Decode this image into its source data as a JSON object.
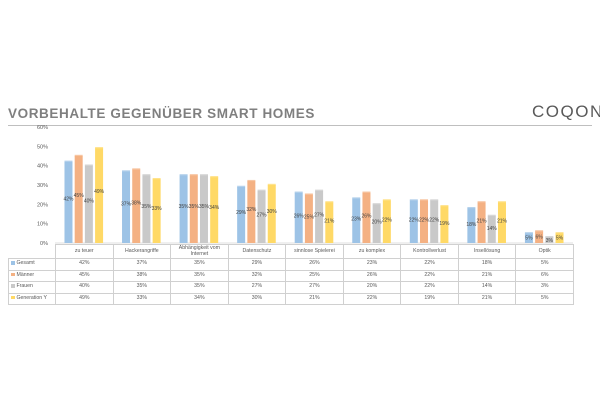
{
  "title": "VORBEHALTE GEGENÜBER SMART HOMES",
  "logo": "COQON",
  "colors": {
    "Gesamt": "#9dc3e6",
    "Männer": "#f4b183",
    "Frauen": "#c9c9c9",
    "Generation Y": "#ffd966"
  },
  "chart_data": {
    "type": "bar",
    "title": "VORBEHALTE GEGENÜBER SMART HOMES",
    "ylim": [
      0,
      60
    ],
    "yticks": [
      "0%",
      "10%",
      "20%",
      "30%",
      "40%",
      "50%",
      "60%"
    ],
    "grid": false,
    "categories": [
      "zu teuer",
      "Hackerangriffe",
      "Abhängigkeit vom Internet",
      "Datenschutz",
      "sinnlose Spielerei",
      "zu komplex",
      "Kontrollverlust",
      "Insellösung",
      "Optik"
    ],
    "series": [
      {
        "name": "Gesamt",
        "values": [
          42,
          37,
          35,
          29,
          26,
          23,
          22,
          18,
          5
        ],
        "labels": [
          "42%",
          "37%",
          "35%",
          "29%",
          "26%",
          "23%",
          "22%",
          "18%",
          "5%"
        ]
      },
      {
        "name": "Männer",
        "values": [
          45,
          38,
          35,
          32,
          25,
          26,
          22,
          21,
          6
        ],
        "labels": [
          "45%",
          "38%",
          "35%",
          "32%",
          "25%",
          "26%",
          "22%",
          "21%",
          "6%"
        ]
      },
      {
        "name": "Frauen",
        "values": [
          40,
          35,
          35,
          27,
          27,
          20,
          22,
          14,
          3
        ],
        "labels": [
          "40%",
          "35%",
          "35%",
          "27%",
          "27%",
          "20%",
          "22%",
          "14%",
          "3%"
        ]
      },
      {
        "name": "Generation Y",
        "values": [
          49,
          33,
          34,
          30,
          21,
          22,
          19,
          21,
          5
        ],
        "labels": [
          "49%",
          "33%",
          "34%",
          "30%",
          "21%",
          "22%",
          "19%",
          "21%",
          "5%"
        ]
      }
    ]
  }
}
